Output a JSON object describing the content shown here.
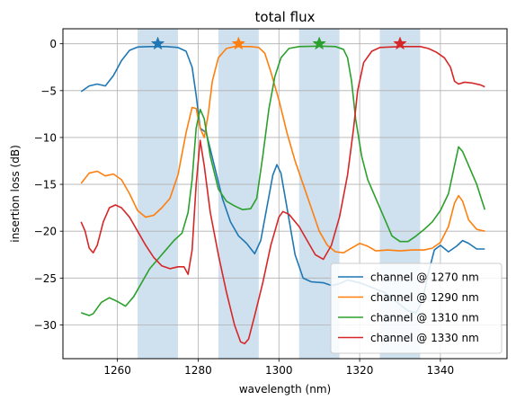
{
  "chart_data": {
    "type": "line",
    "title": "total flux",
    "xlabel": "wavelength (nm)",
    "ylabel": "insertion loss (dB)",
    "xlim": [
      1246.5,
      1356.5
    ],
    "ylim": [
      -33.6,
      1.6
    ],
    "xticks": [
      1260,
      1280,
      1300,
      1320,
      1340
    ],
    "yticks": [
      0,
      -5,
      -10,
      -15,
      -20,
      -25,
      -30
    ],
    "grid": true,
    "legend_position": "lower-right",
    "passbands": [
      [
        1265,
        1275
      ],
      [
        1285,
        1295
      ],
      [
        1305,
        1315
      ],
      [
        1325,
        1335
      ]
    ],
    "passband_color": "#cfe0ee",
    "series": [
      {
        "name": "channel @ 1270 nm",
        "color": "#1f77b4",
        "marker_x": 1270,
        "marker_y": 0,
        "points": [
          [
            1251,
            -5.1
          ],
          [
            1253,
            -4.5
          ],
          [
            1255,
            -4.3
          ],
          [
            1257,
            -4.5
          ],
          [
            1259,
            -3.4
          ],
          [
            1261,
            -1.8
          ],
          [
            1263,
            -0.7
          ],
          [
            1265,
            -0.35
          ],
          [
            1268,
            -0.3
          ],
          [
            1272,
            -0.3
          ],
          [
            1275,
            -0.4
          ],
          [
            1277,
            -0.8
          ],
          [
            1278.5,
            -2.5
          ],
          [
            1279.5,
            -5.5
          ],
          [
            1280.5,
            -9
          ],
          [
            1282,
            -9.5
          ],
          [
            1284,
            -13
          ],
          [
            1286,
            -16.5
          ],
          [
            1288,
            -19
          ],
          [
            1290,
            -20.5
          ],
          [
            1292,
            -21.3
          ],
          [
            1294,
            -22.4
          ],
          [
            1295.5,
            -21
          ],
          [
            1297,
            -17.5
          ],
          [
            1298.5,
            -14
          ],
          [
            1299.5,
            -12.9
          ],
          [
            1300.5,
            -13.8
          ],
          [
            1302,
            -17.5
          ],
          [
            1304,
            -22.5
          ],
          [
            1306,
            -25
          ],
          [
            1308,
            -25.4
          ],
          [
            1311,
            -25.5
          ],
          [
            1313,
            -25.8
          ],
          [
            1315,
            -25.6
          ],
          [
            1317,
            -25.2
          ],
          [
            1320,
            -25.5
          ],
          [
            1323,
            -26
          ],
          [
            1326,
            -26.5
          ],
          [
            1329,
            -27.5
          ],
          [
            1332,
            -28.5
          ],
          [
            1334,
            -28.7
          ],
          [
            1335.5,
            -27.5
          ],
          [
            1337,
            -24.5
          ],
          [
            1338.5,
            -22
          ],
          [
            1340,
            -21.5
          ],
          [
            1342,
            -22.2
          ],
          [
            1344,
            -21.6
          ],
          [
            1345.5,
            -21
          ],
          [
            1347,
            -21.3
          ],
          [
            1349,
            -21.9
          ],
          [
            1351,
            -21.9
          ]
        ]
      },
      {
        "name": "channel @ 1290 nm",
        "color": "#ff7f0e",
        "marker_x": 1290,
        "marker_y": 0,
        "points": [
          [
            1251,
            -14.9
          ],
          [
            1253,
            -13.8
          ],
          [
            1255,
            -13.6
          ],
          [
            1257,
            -14.1
          ],
          [
            1259,
            -13.9
          ],
          [
            1261,
            -14.5
          ],
          [
            1263,
            -16
          ],
          [
            1265,
            -17.8
          ],
          [
            1267,
            -18.5
          ],
          [
            1269,
            -18.3
          ],
          [
            1271,
            -17.5
          ],
          [
            1273,
            -16.5
          ],
          [
            1275,
            -14
          ],
          [
            1277,
            -9.5
          ],
          [
            1278.5,
            -6.8
          ],
          [
            1279.5,
            -6.9
          ],
          [
            1280.5,
            -9
          ],
          [
            1281.5,
            -10
          ],
          [
            1282.5,
            -7.5
          ],
          [
            1283.5,
            -4
          ],
          [
            1285,
            -1.5
          ],
          [
            1287,
            -0.5
          ],
          [
            1289,
            -0.3
          ],
          [
            1293,
            -0.3
          ],
          [
            1295,
            -0.4
          ],
          [
            1296.5,
            -1
          ],
          [
            1298,
            -3
          ],
          [
            1300,
            -6
          ],
          [
            1302,
            -9.5
          ],
          [
            1304,
            -12.5
          ],
          [
            1306,
            -15
          ],
          [
            1308,
            -17.5
          ],
          [
            1310,
            -20
          ],
          [
            1312,
            -21.5
          ],
          [
            1314,
            -22.2
          ],
          [
            1316,
            -22.3
          ],
          [
            1318,
            -21.8
          ],
          [
            1320,
            -21.3
          ],
          [
            1322,
            -21.6
          ],
          [
            1324,
            -22.1
          ],
          [
            1327,
            -22
          ],
          [
            1330,
            -22.1
          ],
          [
            1333,
            -22
          ],
          [
            1336,
            -22
          ],
          [
            1338,
            -21.8
          ],
          [
            1340,
            -21.2
          ],
          [
            1342,
            -19.5
          ],
          [
            1343.5,
            -17
          ],
          [
            1344.5,
            -16.2
          ],
          [
            1345.5,
            -16.8
          ],
          [
            1347,
            -18.8
          ],
          [
            1349,
            -19.8
          ],
          [
            1351,
            -20
          ]
        ]
      },
      {
        "name": "channel @ 1310 nm",
        "color": "#2ca02c",
        "marker_x": 1310,
        "marker_y": 0,
        "points": [
          [
            1251,
            -28.7
          ],
          [
            1253,
            -29
          ],
          [
            1254,
            -28.8
          ],
          [
            1256,
            -27.6
          ],
          [
            1258,
            -27.1
          ],
          [
            1260,
            -27.5
          ],
          [
            1262,
            -28
          ],
          [
            1264,
            -27
          ],
          [
            1266,
            -25.5
          ],
          [
            1268,
            -24
          ],
          [
            1270,
            -23
          ],
          [
            1272,
            -22
          ],
          [
            1274,
            -21
          ],
          [
            1276,
            -20.2
          ],
          [
            1277.5,
            -18
          ],
          [
            1278.5,
            -14.5
          ],
          [
            1279.5,
            -9
          ],
          [
            1280.5,
            -7
          ],
          [
            1281.5,
            -8
          ],
          [
            1283,
            -12
          ],
          [
            1285,
            -15.5
          ],
          [
            1287,
            -16.8
          ],
          [
            1289,
            -17.3
          ],
          [
            1291,
            -17.7
          ],
          [
            1293,
            -17.6
          ],
          [
            1294.5,
            -16.5
          ],
          [
            1296,
            -12
          ],
          [
            1297.5,
            -7
          ],
          [
            1299,
            -3.5
          ],
          [
            1300.5,
            -1.5
          ],
          [
            1302.5,
            -0.5
          ],
          [
            1305,
            -0.3
          ],
          [
            1310,
            -0.25
          ],
          [
            1314,
            -0.3
          ],
          [
            1316,
            -0.6
          ],
          [
            1317,
            -1.5
          ],
          [
            1318,
            -4
          ],
          [
            1319,
            -8
          ],
          [
            1320.5,
            -12
          ],
          [
            1322,
            -14.5
          ],
          [
            1324,
            -16.5
          ],
          [
            1326,
            -18.5
          ],
          [
            1328,
            -20.5
          ],
          [
            1330,
            -21.1
          ],
          [
            1332,
            -21.1
          ],
          [
            1334,
            -20.5
          ],
          [
            1336,
            -19.8
          ],
          [
            1338,
            -19
          ],
          [
            1340,
            -17.8
          ],
          [
            1342,
            -16
          ],
          [
            1343.5,
            -13
          ],
          [
            1344.5,
            -11
          ],
          [
            1345.5,
            -11.5
          ],
          [
            1347,
            -13
          ],
          [
            1349,
            -15
          ],
          [
            1351,
            -17.7
          ]
        ]
      },
      {
        "name": "channel @ 1330 nm",
        "color": "#d62728",
        "marker_x": 1330,
        "marker_y": 0,
        "points": [
          [
            1251,
            -19
          ],
          [
            1252,
            -20
          ],
          [
            1253,
            -21.8
          ],
          [
            1254,
            -22.3
          ],
          [
            1255,
            -21.5
          ],
          [
            1256.5,
            -19
          ],
          [
            1258,
            -17.5
          ],
          [
            1259.5,
            -17.2
          ],
          [
            1261,
            -17.5
          ],
          [
            1263,
            -18.5
          ],
          [
            1265,
            -20
          ],
          [
            1267,
            -21.5
          ],
          [
            1269,
            -22.8
          ],
          [
            1271,
            -23.7
          ],
          [
            1273,
            -24
          ],
          [
            1275,
            -23.8
          ],
          [
            1276.5,
            -23.8
          ],
          [
            1277.5,
            -24.6
          ],
          [
            1278.5,
            -22
          ],
          [
            1279.5,
            -15
          ],
          [
            1280.5,
            -10.3
          ],
          [
            1281.5,
            -13
          ],
          [
            1283,
            -18
          ],
          [
            1285,
            -22.5
          ],
          [
            1287,
            -26.5
          ],
          [
            1289,
            -30
          ],
          [
            1290.5,
            -31.8
          ],
          [
            1291.5,
            -32
          ],
          [
            1292.5,
            -31.5
          ],
          [
            1294,
            -29
          ],
          [
            1296,
            -25.5
          ],
          [
            1298,
            -21.5
          ],
          [
            1300,
            -18.5
          ],
          [
            1301,
            -17.9
          ],
          [
            1302.5,
            -18.2
          ],
          [
            1305,
            -19.5
          ],
          [
            1307,
            -21
          ],
          [
            1309,
            -22.5
          ],
          [
            1311,
            -23
          ],
          [
            1313,
            -21.5
          ],
          [
            1315,
            -18.5
          ],
          [
            1317,
            -14
          ],
          [
            1318.5,
            -9
          ],
          [
            1319.5,
            -5
          ],
          [
            1321,
            -2
          ],
          [
            1323,
            -0.8
          ],
          [
            1325,
            -0.4
          ],
          [
            1330,
            -0.3
          ],
          [
            1335,
            -0.3
          ],
          [
            1337,
            -0.5
          ],
          [
            1339,
            -0.9
          ],
          [
            1341,
            -1.5
          ],
          [
            1342.5,
            -2.5
          ],
          [
            1343.5,
            -4
          ],
          [
            1344.5,
            -4.3
          ],
          [
            1346,
            -4.1
          ],
          [
            1348,
            -4.2
          ],
          [
            1350,
            -4.4
          ],
          [
            1351,
            -4.6
          ]
        ]
      }
    ]
  }
}
